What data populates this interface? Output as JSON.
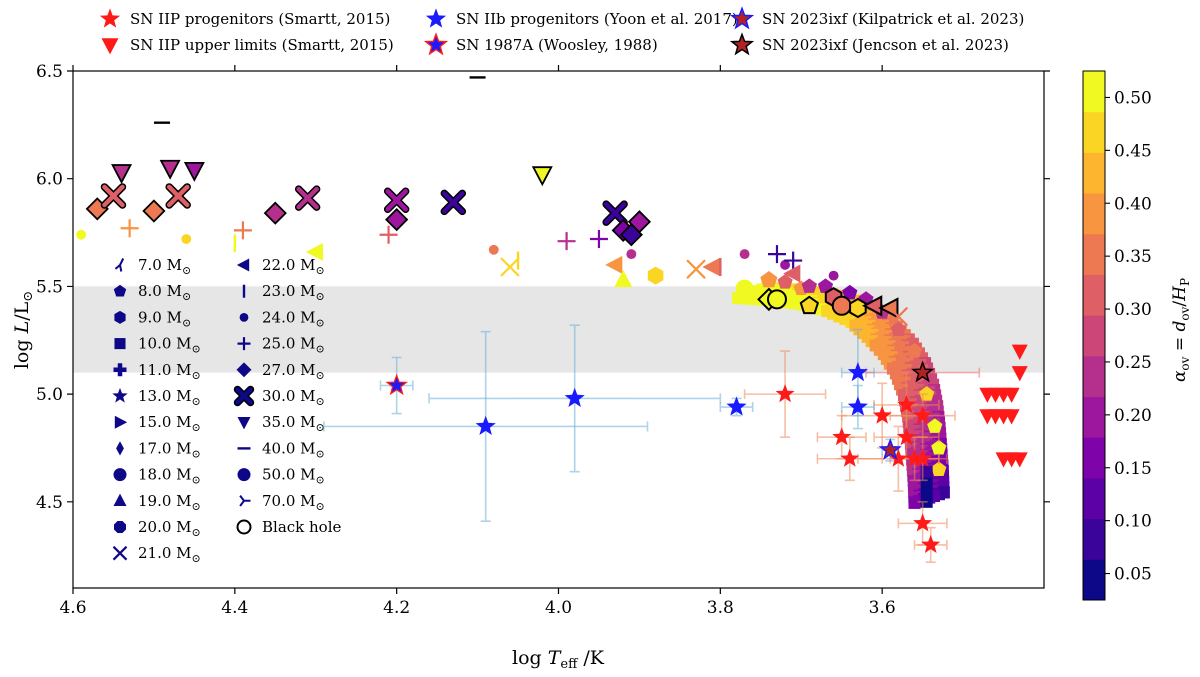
{
  "chart_data": {
    "type": "scatter",
    "xlabel": "log T_eff /K",
    "ylabel": "log L/L_⊙",
    "xlim": [
      4.6,
      3.4
    ],
    "ylim": [
      4.1,
      6.5
    ],
    "xticks": [
      "4.6",
      "4.4",
      "4.2",
      "4.0",
      "3.8",
      "3.6"
    ],
    "yticks": [
      "4.5",
      "5.0",
      "5.5",
      "6.0",
      "6.5"
    ],
    "shaded_band": [
      5.1,
      5.5
    ],
    "colorbar": {
      "label": "α_ov = d_ov/H_P",
      "ticks": [
        "0.05",
        "0.10",
        "0.15",
        "0.20",
        "0.25",
        "0.30",
        "0.35",
        "0.40",
        "0.45",
        "0.50"
      ],
      "range": [
        0.025,
        0.525
      ],
      "colors": [
        "#0d0887",
        "#3a049a",
        "#5c01a6",
        "#7e03a8",
        "#9c179e",
        "#b52f8c",
        "#cc4778",
        "#de5f65",
        "#ed7953",
        "#f89540",
        "#fdb42f",
        "#fbd524",
        "#f0f921"
      ]
    },
    "top_legend": [
      {
        "label": "SN IIP progenitors (Smartt, 2015)",
        "marker": "star",
        "color": "#ff1a1a"
      },
      {
        "label": "SN IIP upper limits (Smartt, 2015)",
        "marker": "triangle-down",
        "color": "#ff1a1a"
      },
      {
        "label": "SN IIb progenitors (Yoon et al. 2017)",
        "marker": "star",
        "color": "#1a1aff"
      },
      {
        "label": "SN 1987A (Woosley, 1988)",
        "marker": "star",
        "color": "#1a1aff",
        "edge": "#ff1a1a"
      },
      {
        "label": "SN 2023ixf (Kilpatrick et al. 2023)",
        "marker": "star",
        "color": "#b22222",
        "edge": "#1a1aff"
      },
      {
        "label": "SN 2023ixf (Jencson et al. 2023)",
        "marker": "star",
        "color": "#b22222",
        "edge": "#000000"
      }
    ],
    "mass_legend": [
      {
        "label": "7.0 M",
        "marker": "tri"
      },
      {
        "label": "8.0 M",
        "marker": "pentagon"
      },
      {
        "label": "9.0 M",
        "marker": "hexagon"
      },
      {
        "label": "10.0 M",
        "marker": "square"
      },
      {
        "label": "11.0 M",
        "marker": "plus-thick"
      },
      {
        "label": "13.0 M",
        "marker": "star"
      },
      {
        "label": "15.0 M",
        "marker": "triangle-right"
      },
      {
        "label": "17.0 M",
        "marker": "thin-diamond"
      },
      {
        "label": "18.0 M",
        "marker": "circle"
      },
      {
        "label": "19.0 M",
        "marker": "triangle-up"
      },
      {
        "label": "20.0 M",
        "marker": "octagon"
      },
      {
        "label": "21.0 M",
        "marker": "x"
      },
      {
        "label": "22.0 M",
        "marker": "triangle-left"
      },
      {
        "label": "23.0 M",
        "marker": "vline"
      },
      {
        "label": "24.0 M",
        "marker": "point"
      },
      {
        "label": "25.0 M",
        "marker": "plus"
      },
      {
        "label": "27.0 M",
        "marker": "diamond"
      },
      {
        "label": "30.0 M",
        "marker": "x-thick"
      },
      {
        "label": "35.0 M",
        "marker": "triangle-down"
      },
      {
        "label": "40.0 M",
        "marker": "hline"
      },
      {
        "label": "50.0 M",
        "marker": "circle"
      },
      {
        "label": "70.0 M",
        "marker": "tri-right"
      },
      {
        "label": "Black hole",
        "marker": "open-circle"
      }
    ],
    "mass_unit_symbol": "⊙",
    "iip_progenitors": [
      {
        "x": 3.72,
        "y": 5.0,
        "xe": 0.05,
        "ye": 0.2
      },
      {
        "x": 3.65,
        "y": 4.8,
        "xe": 0.03,
        "ye": 0.1
      },
      {
        "x": 3.64,
        "y": 4.7,
        "xe": 0.04,
        "ye": 0.1
      },
      {
        "x": 3.6,
        "y": 4.9,
        "xe": 0.05,
        "ye": 0.15
      },
      {
        "x": 3.58,
        "y": 4.7,
        "xe": 0.05,
        "ye": 0.15
      },
      {
        "x": 3.57,
        "y": 4.95,
        "xe": 0.04,
        "ye": 0.15
      },
      {
        "x": 3.57,
        "y": 4.8,
        "xe": 0.04,
        "ye": 0.1
      },
      {
        "x": 3.56,
        "y": 4.7,
        "xe": 0.03,
        "ye": 0.1
      },
      {
        "x": 3.55,
        "y": 4.9,
        "xe": 0.04,
        "ye": 0.1
      },
      {
        "x": 3.55,
        "y": 4.7,
        "xe": 0.03,
        "ye": 0.1
      },
      {
        "x": 3.55,
        "y": 4.4,
        "xe": 0.03,
        "ye": 0.1
      },
      {
        "x": 3.54,
        "y": 4.3,
        "xe": 0.02,
        "ye": 0.08
      }
    ],
    "iip_upper_limits": [
      {
        "x": 3.43,
        "y": 5.2
      },
      {
        "x": 3.43,
        "y": 5.1
      },
      {
        "x": 3.47,
        "y": 5.0
      },
      {
        "x": 3.46,
        "y": 5.0
      },
      {
        "x": 3.45,
        "y": 5.0
      },
      {
        "x": 3.44,
        "y": 5.0
      },
      {
        "x": 3.47,
        "y": 4.9
      },
      {
        "x": 3.46,
        "y": 4.9
      },
      {
        "x": 3.45,
        "y": 4.9
      },
      {
        "x": 3.44,
        "y": 4.9
      },
      {
        "x": 3.45,
        "y": 4.7
      },
      {
        "x": 3.44,
        "y": 4.7
      },
      {
        "x": 3.43,
        "y": 4.7
      }
    ],
    "iib_progenitors": [
      {
        "x": 4.09,
        "y": 4.85,
        "xe": 0.2,
        "ye": 0.44
      },
      {
        "x": 3.98,
        "y": 4.98,
        "xe": 0.18,
        "ye": 0.34
      },
      {
        "x": 3.78,
        "y": 4.94,
        "xe": 0.02,
        "ye": 0.04
      },
      {
        "x": 3.63,
        "y": 5.1,
        "xe": 0.02,
        "ye": 0.2
      },
      {
        "x": 3.63,
        "y": 4.94,
        "xe": 0.02,
        "ye": 0.1
      }
    ],
    "sn1987a": {
      "x": 4.2,
      "y": 5.04,
      "xe": 0.02,
      "ye": 0.13
    },
    "sn2023ixf_kilpatrick": {
      "x": 3.59,
      "y": 4.74,
      "xe": 0.01,
      "ye": 0.05
    },
    "sn2023ixf_jencson": {
      "x": 3.55,
      "y": 5.1,
      "xe": 0.07,
      "ye": 0.03
    },
    "model_endpoints": [
      {
        "x": 4.59,
        "y": 5.74,
        "m": "point",
        "a": 0.5
      },
      {
        "x": 4.57,
        "y": 5.86,
        "m": "diamond",
        "a": 0.35
      },
      {
        "x": 4.55,
        "y": 5.92,
        "m": "x-thick",
        "a": 0.3
      },
      {
        "x": 4.54,
        "y": 6.03,
        "m": "triangle-down",
        "a": 0.25
      },
      {
        "x": 4.53,
        "y": 5.77,
        "m": "plus",
        "a": 0.4
      },
      {
        "x": 4.5,
        "y": 5.85,
        "m": "diamond",
        "a": 0.35
      },
      {
        "x": 4.49,
        "y": 6.26,
        "m": "hline",
        "a": 0.05
      },
      {
        "x": 4.48,
        "y": 6.05,
        "m": "triangle-down",
        "a": 0.22
      },
      {
        "x": 4.47,
        "y": 5.92,
        "m": "x-thick",
        "a": 0.3
      },
      {
        "x": 4.46,
        "y": 5.72,
        "m": "point",
        "a": 0.45
      },
      {
        "x": 4.45,
        "y": 6.04,
        "m": "triangle-down",
        "a": 0.2
      },
      {
        "x": 4.4,
        "y": 5.7,
        "m": "vline",
        "a": 0.5
      },
      {
        "x": 4.39,
        "y": 5.76,
        "m": "plus",
        "a": 0.35
      },
      {
        "x": 4.35,
        "y": 5.84,
        "m": "diamond",
        "a": 0.25
      },
      {
        "x": 4.31,
        "y": 5.91,
        "m": "x-thick",
        "a": 0.25
      },
      {
        "x": 4.3,
        "y": 5.66,
        "m": "triangle-left",
        "a": 0.5
      },
      {
        "x": 4.21,
        "y": 5.74,
        "m": "plus",
        "a": 0.3
      },
      {
        "x": 4.2,
        "y": 5.81,
        "m": "diamond",
        "a": 0.2
      },
      {
        "x": 4.2,
        "y": 5.9,
        "m": "x-thick",
        "a": 0.2
      },
      {
        "x": 4.1,
        "y": 6.47,
        "m": "hline",
        "a": 0.05
      },
      {
        "x": 4.13,
        "y": 5.89,
        "m": "x-thick",
        "a": 0.1
      },
      {
        "x": 4.08,
        "y": 5.67,
        "m": "point",
        "a": 0.35
      },
      {
        "x": 4.06,
        "y": 5.59,
        "m": "x",
        "a": 0.45
      },
      {
        "x": 4.05,
        "y": 5.62,
        "m": "vline",
        "a": 0.45
      },
      {
        "x": 4.02,
        "y": 6.02,
        "m": "triangle-down",
        "a": 0.5
      },
      {
        "x": 3.99,
        "y": 5.71,
        "m": "plus",
        "a": 0.25
      },
      {
        "x": 3.95,
        "y": 5.72,
        "m": "plus",
        "a": 0.15
      },
      {
        "x": 3.93,
        "y": 5.6,
        "m": "triangle-left",
        "a": 0.4
      },
      {
        "x": 3.93,
        "y": 5.84,
        "m": "x-thick",
        "a": 0.1
      },
      {
        "x": 3.92,
        "y": 5.76,
        "m": "diamond",
        "a": 0.15
      },
      {
        "x": 3.92,
        "y": 5.53,
        "m": "triangle-up",
        "a": 0.5
      },
      {
        "x": 3.91,
        "y": 5.74,
        "m": "diamond",
        "a": 0.07
      },
      {
        "x": 3.91,
        "y": 5.65,
        "m": "point",
        "a": 0.25
      },
      {
        "x": 3.9,
        "y": 5.8,
        "m": "diamond",
        "a": 0.2
      },
      {
        "x": 3.88,
        "y": 5.55,
        "m": "hexagon",
        "a": 0.45
      },
      {
        "x": 3.83,
        "y": 5.58,
        "m": "x",
        "a": 0.4
      },
      {
        "x": 3.81,
        "y": 5.59,
        "m": "triangle-left",
        "a": 0.35
      },
      {
        "x": 3.8,
        "y": 5.59,
        "m": "vline",
        "a": 0.3
      },
      {
        "x": 3.77,
        "y": 5.65,
        "m": "point",
        "a": 0.25
      },
      {
        "x": 3.77,
        "y": 5.49,
        "m": "circle",
        "a": 0.5
      },
      {
        "x": 3.74,
        "y": 5.53,
        "m": "pentagon",
        "a": 0.4
      },
      {
        "x": 3.73,
        "y": 5.65,
        "m": "plus",
        "a": 0.1
      },
      {
        "x": 3.72,
        "y": 5.6,
        "m": "point",
        "a": 0.2
      },
      {
        "x": 3.71,
        "y": 5.62,
        "m": "plus",
        "a": 0.1
      },
      {
        "x": 3.71,
        "y": 5.56,
        "m": "triangle-left",
        "a": 0.3
      },
      {
        "x": 3.66,
        "y": 5.55,
        "m": "point",
        "a": 0.2
      }
    ],
    "black_holes": [
      {
        "x": 3.74,
        "y": 5.44,
        "m": "diamond",
        "a": 0.5
      },
      {
        "x": 3.73,
        "y": 5.44,
        "m": "circle",
        "a": 0.5
      },
      {
        "x": 3.69,
        "y": 5.41,
        "m": "pentagon",
        "a": 0.45
      },
      {
        "x": 3.66,
        "y": 5.45,
        "m": "hexagon",
        "a": 0.3
      },
      {
        "x": 3.65,
        "y": 5.41,
        "m": "circle",
        "a": 0.35
      },
      {
        "x": 3.63,
        "y": 5.4,
        "m": "hexagon",
        "a": 0.45
      },
      {
        "x": 3.61,
        "y": 5.41,
        "m": "triangle-left",
        "a": 0.3
      },
      {
        "x": 3.59,
        "y": 5.4,
        "m": "triangle-left",
        "a": 0.35
      },
      {
        "x": 3.58,
        "y": 5.36,
        "m": "x",
        "a": 0.35
      }
    ]
  }
}
